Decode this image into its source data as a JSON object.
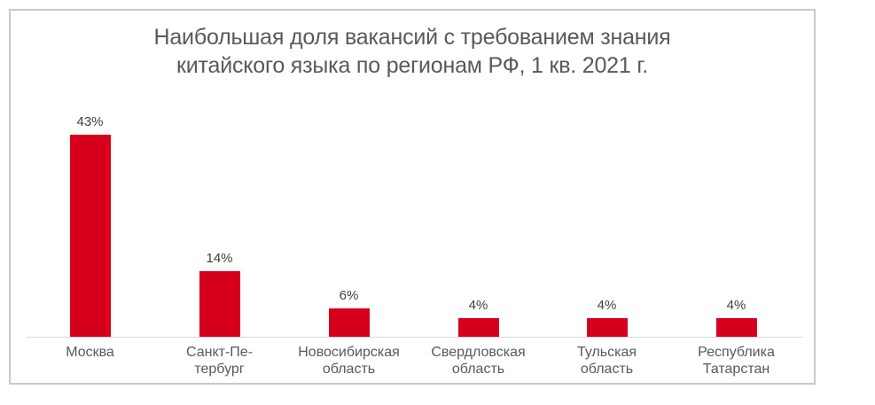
{
  "chart_data": {
    "type": "bar",
    "title": "Наибольшая доля вакансий с требованием знания китайского языка по регионам РФ, 1 кв. 2021 г.",
    "title_lines": [
      "Наибольшая доля вакансий с требованием знания",
      "китайского языка по регионам РФ, 1 кв. 2021 г."
    ],
    "categories": [
      "Москва",
      "Санкт-Петербург",
      "Новосибирская область",
      "Свердловская область",
      "Тульская область",
      "Республика Татарстан"
    ],
    "category_lines": [
      [
        "Москва"
      ],
      [
        "Санкт-Пе-",
        "тербург"
      ],
      [
        "Новосибирская",
        "область"
      ],
      [
        "Свердловская",
        "область"
      ],
      [
        "Тульская",
        "область"
      ],
      [
        "Республика",
        "Татарстан"
      ]
    ],
    "values": [
      43,
      14,
      6,
      4,
      4,
      4
    ],
    "value_labels": [
      "43%",
      "14%",
      "6%",
      "4%",
      "4%",
      "4%"
    ],
    "unit": "%",
    "xlabel": "",
    "ylabel": "",
    "ylim": [
      0,
      43
    ],
    "grid": false,
    "legend": null,
    "colors": {
      "bar": "#d6001c",
      "title": "#595959",
      "axis": "#d9d9d9",
      "frame": "#c8c8c8"
    }
  }
}
